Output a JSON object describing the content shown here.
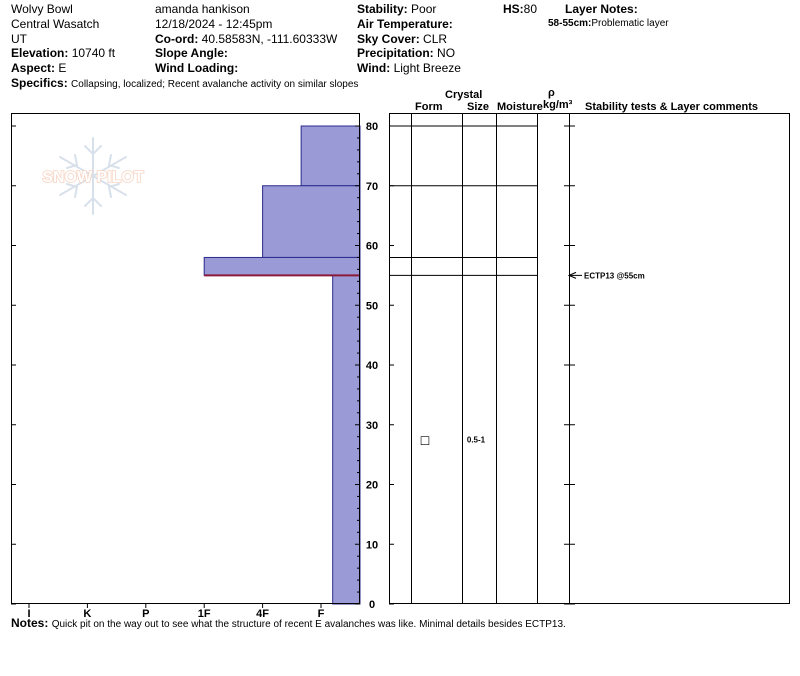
{
  "header": {
    "location": "Wolvy Bowl",
    "range": "Central Wasatch",
    "state": "UT",
    "elevation_label": "Elevation:",
    "elevation": "10740 ft",
    "aspect_label": "Aspect:",
    "aspect": "E",
    "specifics_label": "Specifics:",
    "specifics": "Collapsing, localized; Recent avalanche activity on similar slopes",
    "observer": "amanda hankison",
    "datetime": "12/18/2024 - 12:45pm",
    "coord_label": "Co-ord:",
    "coord": "40.58583N, -111.60333W",
    "slope_angle_label": "Slope Angle:",
    "slope_angle": "",
    "wind_loading_label": "Wind Loading:",
    "wind_loading": "",
    "stability_label": "Stability:",
    "stability": "Poor",
    "air_temp_label": "Air Temperature:",
    "air_temp": "",
    "sky_cover_label": "Sky Cover:",
    "sky_cover": "CLR",
    "precip_label": "Precipitation:",
    "precip": "NO",
    "wind_label": "Wind:",
    "wind": "Light Breeze",
    "hs_label": "HS:",
    "hs": "80",
    "layer_notes_label": "Layer Notes:",
    "layer_note_range": "58-55cm:",
    "layer_note_text": "Problematic layer"
  },
  "watermark": "SNOW PILOT",
  "column_headers": {
    "crystal": "Crystal",
    "form": "Form",
    "size": "Size",
    "moisture": "Moisture",
    "rho": "ρ",
    "density_unit": "kg/m³",
    "comments": "Stability tests & Layer comments"
  },
  "notes_label": "Notes:",
  "notes": "Quick pit on the way out to see what the structure of recent E avalanches was like. Minimal details besides ECTP13.",
  "colors": {
    "layer_fill": "#9a9ad6",
    "layer_stroke": "#2a2a8c",
    "weak_layer": "#8b1a3a"
  },
  "chart_data": {
    "type": "snow_profile",
    "hardness_axis": [
      "I",
      "K",
      "P",
      "1F",
      "4F",
      "F"
    ],
    "height_axis": {
      "min": 0,
      "max": 80,
      "step": 10,
      "ticks": [
        0,
        10,
        20,
        30,
        40,
        50,
        60,
        70,
        80
      ],
      "unit": "cm"
    },
    "layers": [
      {
        "top": 80,
        "bottom": 70,
        "hardness": "F+"
      },
      {
        "top": 70,
        "bottom": 58,
        "hardness": "4F"
      },
      {
        "top": 58,
        "bottom": 55,
        "hardness": "1F"
      },
      {
        "top": 55,
        "bottom": 0,
        "hardness": "F-"
      }
    ],
    "hardness_index": {
      "I": 0,
      "K": 1,
      "P": 2,
      "1F": 3,
      "4F": 4,
      "F+": 4.66,
      "F": 5,
      "F-": 5.2
    },
    "weak_layer_height": 55,
    "layer_boundaries": [
      80,
      70,
      58,
      55
    ],
    "grains": [
      {
        "height": 27.5,
        "form": "□",
        "size": "0.5-1"
      }
    ],
    "stability_tests": [
      {
        "height": 55,
        "label": "ECTP13 @55cm"
      }
    ]
  }
}
